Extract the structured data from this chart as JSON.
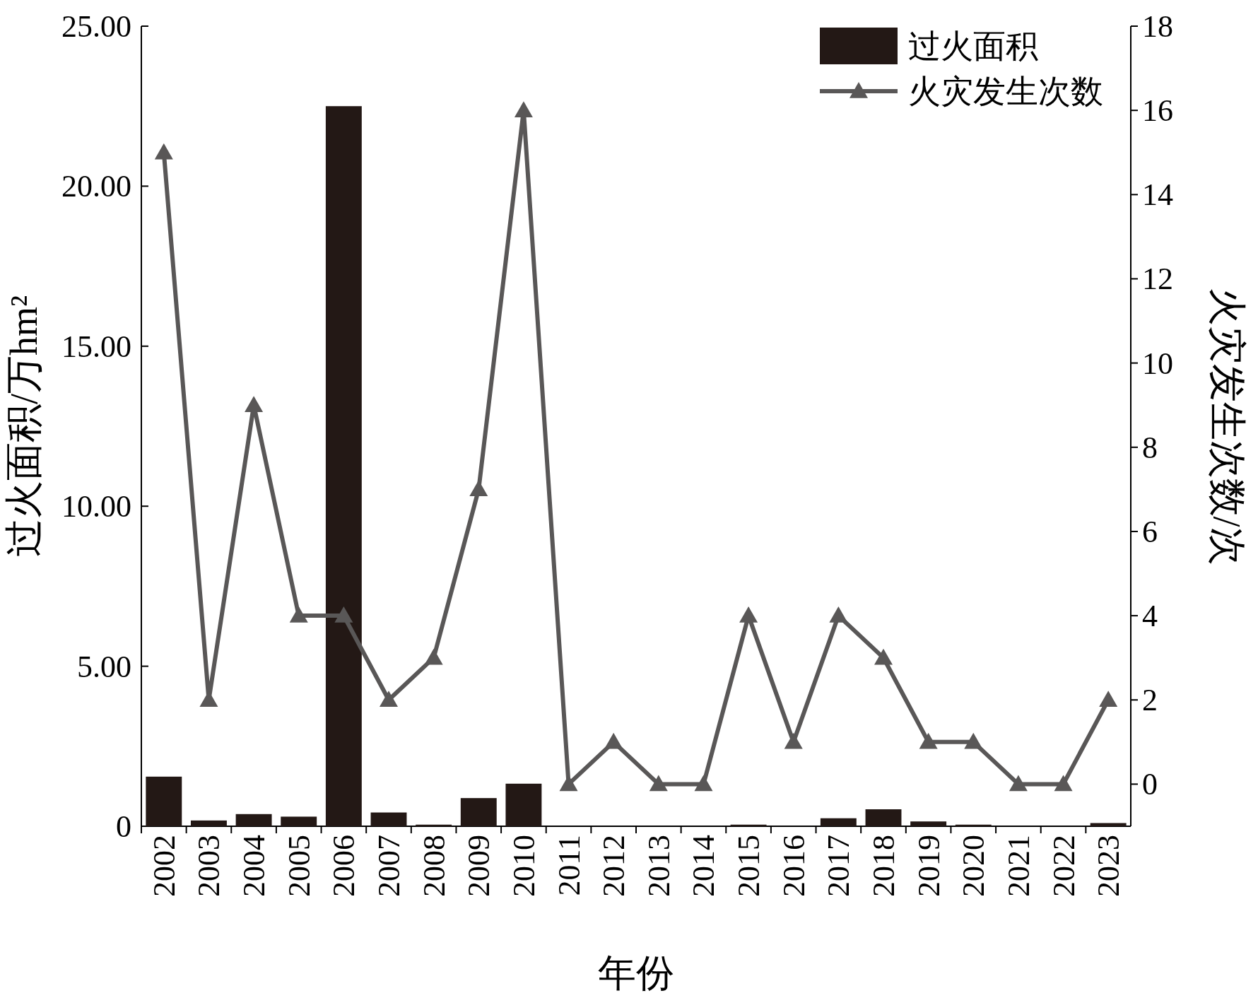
{
  "chart_data": {
    "type": "bar",
    "xlabel": "年份",
    "ylabel": "过火面积/万hm²",
    "y2label": "火灾发生次数/次",
    "categories": [
      "2002",
      "2003",
      "2004",
      "2005",
      "2006",
      "2007",
      "2008",
      "2009",
      "2010",
      "2011",
      "2012",
      "2013",
      "2014",
      "2015",
      "2016",
      "2017",
      "2018",
      "2019",
      "2020",
      "2021",
      "2022",
      "2023"
    ],
    "series": [
      {
        "name": "过火面积",
        "color": "#231815",
        "values": [
          1.55,
          0.18,
          0.38,
          0.3,
          22.5,
          0.43,
          0.05,
          0.88,
          1.33,
          0,
          0,
          0,
          0,
          0.05,
          0,
          0.25,
          0.53,
          0.15,
          0.05,
          0,
          0,
          0.1
        ]
      },
      {
        "name": "火灾发生次数",
        "type": "line",
        "axis": "y2",
        "color": "#595757",
        "values": [
          15,
          2,
          9,
          4,
          4,
          2,
          3,
          7,
          16,
          0,
          1,
          0,
          0,
          4,
          1,
          4,
          3,
          1,
          1,
          0,
          0,
          2
        ]
      }
    ],
    "ylim": [
      0,
      25
    ],
    "yticks": [
      {
        "value": 0,
        "label": "0"
      },
      {
        "value": 5,
        "label": "5.00"
      },
      {
        "value": 10,
        "label": "10.00"
      },
      {
        "value": 15,
        "label": "15.00"
      },
      {
        "value": 20,
        "label": "20.00"
      },
      {
        "value": 25,
        "label": "25.00"
      }
    ],
    "y2lim": [
      -1,
      18
    ],
    "y2ticks": [
      0,
      2,
      4,
      6,
      8,
      10,
      12,
      14,
      16,
      18
    ],
    "marker": "triangle",
    "line_style": "solid",
    "grid": false,
    "legend": "top right"
  }
}
